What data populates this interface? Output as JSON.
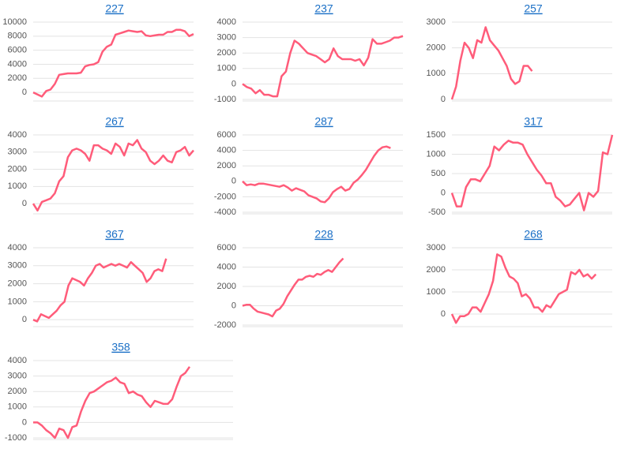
{
  "chart_data": [
    {
      "type": "line",
      "title": "227",
      "color": "#ff5c7a",
      "xlim": [
        0,
        37
      ],
      "ylim": [
        -1000,
        10000
      ],
      "yticks": [
        0,
        2000,
        4000,
        6000,
        8000,
        10000
      ],
      "values": [
        0,
        -300,
        -600,
        200,
        400,
        1200,
        2500,
        2600,
        2700,
        2700,
        2700,
        2800,
        3700,
        3900,
        4000,
        4300,
        5800,
        6500,
        6800,
        8200,
        8400,
        8600,
        8800,
        8700,
        8600,
        8700,
        8100,
        8000,
        8100,
        8200,
        8200,
        8600,
        8600,
        8900,
        8900,
        8700,
        8000,
        8300
      ]
    },
    {
      "type": "line",
      "title": "237",
      "color": "#ff5c7a",
      "xlim": [
        0,
        37
      ],
      "ylim": [
        -1000,
        4000
      ],
      "yticks": [
        -1000,
        0,
        1000,
        2000,
        3000,
        4000
      ],
      "values": [
        0,
        -200,
        -300,
        -600,
        -400,
        -700,
        -700,
        -800,
        -800,
        500,
        800,
        2000,
        2800,
        2600,
        2300,
        2000,
        1900,
        1800,
        1600,
        1400,
        1600,
        2300,
        1800,
        1600,
        1600,
        1600,
        1500,
        1600,
        1200,
        1700,
        2900,
        2600,
        2600,
        2700,
        2800,
        3000,
        3000,
        3100
      ]
    },
    {
      "type": "line",
      "title": "257",
      "color": "#ff5c7a",
      "xlim": [
        0,
        38
      ],
      "ylim": [
        0,
        3000
      ],
      "yticks": [
        0,
        1000,
        2000,
        3000
      ],
      "values": [
        0,
        500,
        1500,
        2200,
        2000,
        1600,
        2300,
        2200,
        2800,
        2300,
        2100,
        1900,
        1600,
        1300,
        800,
        600,
        700,
        1300,
        1300,
        1100
      ]
    },
    {
      "type": "line",
      "title": "267",
      "color": "#ff5c7a",
      "xlim": [
        0,
        37
      ],
      "ylim": [
        -500,
        4000
      ],
      "yticks": [
        0,
        1000,
        2000,
        3000,
        4000
      ],
      "values": [
        0,
        -400,
        100,
        200,
        300,
        600,
        1300,
        1600,
        2700,
        3100,
        3200,
        3100,
        2900,
        2500,
        3400,
        3400,
        3200,
        3100,
        2900,
        3500,
        3300,
        2800,
        3500,
        3400,
        3700,
        3200,
        3000,
        2500,
        2300,
        2500,
        2800,
        2500,
        2400,
        3000,
        3100,
        3300,
        2800,
        3100
      ]
    },
    {
      "type": "line",
      "title": "287",
      "color": "#ff5c7a",
      "xlim": [
        0,
        39
      ],
      "ylim": [
        -4000,
        6000
      ],
      "yticks": [
        -4000,
        -2000,
        0,
        2000,
        4000,
        6000
      ],
      "values": [
        0,
        -500,
        -400,
        -500,
        -300,
        -300,
        -400,
        -500,
        -600,
        -700,
        -500,
        -800,
        -1200,
        -900,
        -1100,
        -1300,
        -1800,
        -2000,
        -2200,
        -2600,
        -2700,
        -2200,
        -1400,
        -1000,
        -700,
        -1200,
        -1000,
        -200,
        200,
        800,
        1500,
        2400,
        3300,
        4000,
        4400,
        4500,
        4300
      ]
    },
    {
      "type": "line",
      "title": "317",
      "color": "#ff5c7a",
      "xlim": [
        0,
        34
      ],
      "ylim": [
        -500,
        1500
      ],
      "yticks": [
        -500,
        0,
        500,
        1000,
        1500
      ],
      "values": [
        0,
        -350,
        -350,
        150,
        350,
        350,
        300,
        500,
        700,
        1200,
        1100,
        1250,
        1350,
        1300,
        1300,
        1250,
        1000,
        800,
        600,
        450,
        250,
        250,
        -100,
        -200,
        -350,
        -300,
        -150,
        0,
        -450,
        0,
        -100,
        50,
        1050,
        1000,
        1500
      ]
    },
    {
      "type": "line",
      "title": "367",
      "color": "#ff5c7a",
      "xlim": [
        0,
        41
      ],
      "ylim": [
        -300,
        4000
      ],
      "yticks": [
        0,
        1000,
        2000,
        3000,
        4000
      ],
      "values": [
        0,
        -100,
        300,
        200,
        100,
        300,
        500,
        800,
        1000,
        1900,
        2300,
        2200,
        2100,
        1900,
        2300,
        2600,
        3000,
        3100,
        2900,
        3000,
        3100,
        3000,
        3100,
        3000,
        2900,
        3200,
        3000,
        2800,
        2600,
        2100,
        2300,
        2700,
        2800,
        2700,
        3400
      ]
    },
    {
      "type": "line",
      "title": "228",
      "color": "#ff5c7a",
      "xlim": [
        0,
        43
      ],
      "ylim": [
        -2000,
        6000
      ],
      "yticks": [
        -2000,
        0,
        2000,
        4000,
        6000
      ],
      "values": [
        0,
        100,
        100,
        -300,
        -600,
        -700,
        -800,
        -900,
        -1100,
        -500,
        -300,
        200,
        1000,
        1600,
        2200,
        2700,
        2700,
        3000,
        3100,
        3000,
        3300,
        3200,
        3500,
        3700,
        3500,
        4000,
        4500,
        4900
      ]
    },
    {
      "type": "line",
      "title": "268",
      "color": "#ff5c7a",
      "xlim": [
        0,
        39
      ],
      "ylim": [
        -500,
        3000
      ],
      "yticks": [
        0,
        1000,
        2000,
        3000
      ],
      "values": [
        0,
        -400,
        -100,
        -100,
        0,
        300,
        300,
        100,
        500,
        900,
        1500,
        2700,
        2600,
        2100,
        1700,
        1600,
        1400,
        800,
        900,
        700,
        300,
        300,
        100,
        400,
        300,
        600,
        900,
        1000,
        1100,
        1900,
        1800,
        2000,
        1700,
        1800,
        1600,
        1800
      ]
    },
    {
      "type": "line",
      "title": "358",
      "color": "#ff5c7a",
      "xlim": [
        0,
        46
      ],
      "ylim": [
        -1000,
        4000
      ],
      "yticks": [
        -1000,
        0,
        1000,
        2000,
        3000,
        4000
      ],
      "values": [
        0,
        0,
        -200,
        -500,
        -700,
        -1000,
        -400,
        -500,
        -1000,
        -300,
        -200,
        700,
        1400,
        1900,
        2000,
        2200,
        2400,
        2600,
        2700,
        2900,
        2600,
        2500,
        1900,
        2000,
        1800,
        1700,
        1300,
        1000,
        1400,
        1300,
        1200,
        1200,
        1500,
        2300,
        3000,
        3200,
        3600
      ]
    }
  ]
}
